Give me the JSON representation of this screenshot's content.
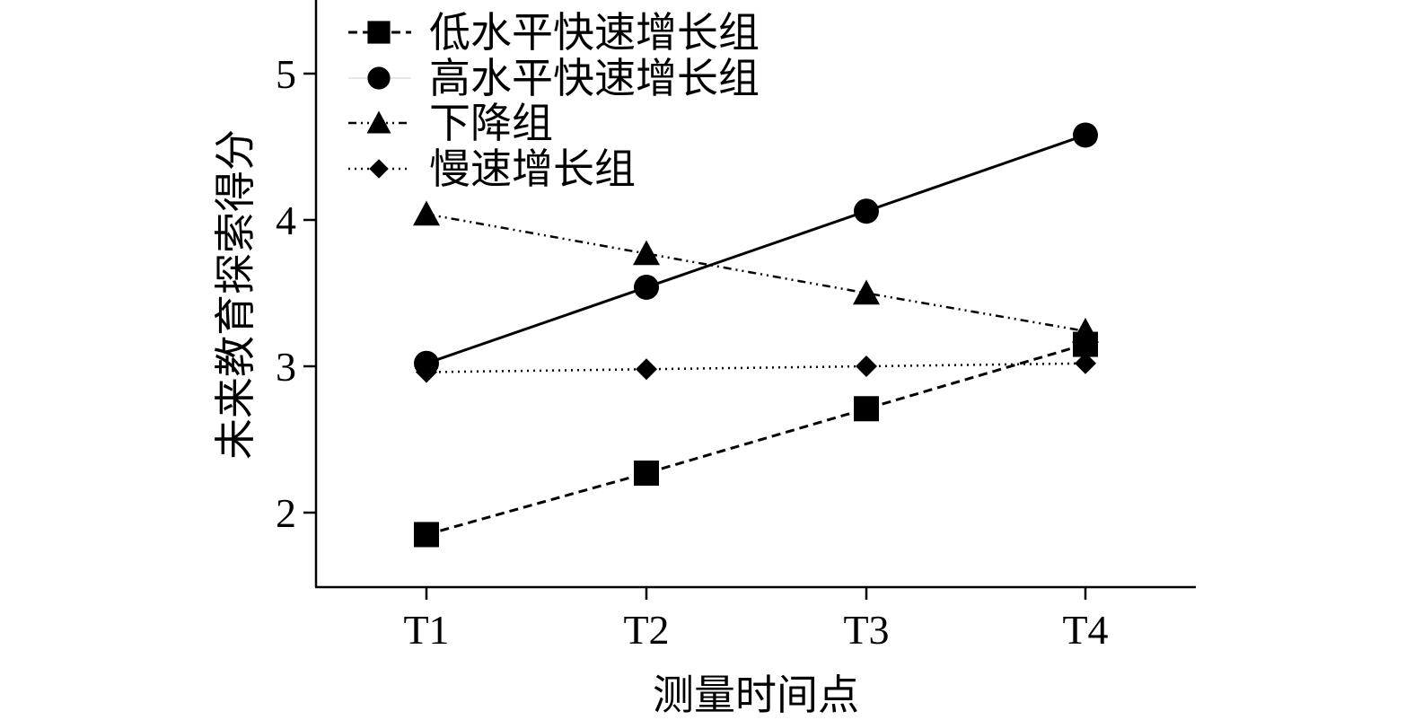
{
  "chart_data": {
    "type": "line",
    "xlabel": "测量时间点",
    "ylabel": "未来教育探索得分",
    "categories": [
      "T1",
      "T2",
      "T3",
      "T4"
    ],
    "y_ticks": [
      2,
      3,
      4,
      5
    ],
    "ylim": [
      1.5,
      5.5
    ],
    "grid": false,
    "legend_position": "top-left",
    "series": [
      {
        "name": "低水平快速增长组",
        "marker": "square",
        "line_style": "dashed",
        "values": [
          1.85,
          2.27,
          2.71,
          3.15
        ]
      },
      {
        "name": "高水平快速增长组",
        "marker": "circle",
        "line_style": "solid",
        "values": [
          3.02,
          3.54,
          4.06,
          4.58
        ]
      },
      {
        "name": "下降组",
        "marker": "triangle",
        "line_style": "dash-dot",
        "values": [
          4.04,
          3.77,
          3.5,
          3.24
        ]
      },
      {
        "name": "慢速增长组",
        "marker": "diamond",
        "line_style": "dotted",
        "values": [
          2.96,
          2.98,
          3.0,
          3.02
        ]
      }
    ],
    "color": "#000000"
  }
}
